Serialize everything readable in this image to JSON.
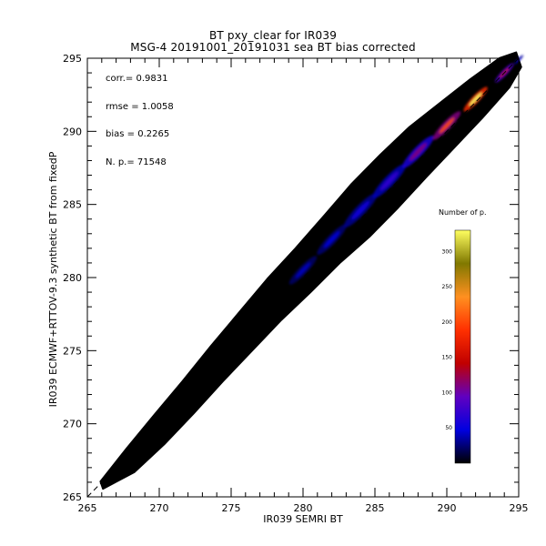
{
  "title_line1": "BT pxy_clear for IR039",
  "title_line2": "MSG-4 20191001_20191031 sea BT bias corrected",
  "stats": {
    "corr": "corr.= 0.9831",
    "rmse": "rmse = 1.0058",
    "bias": "bias = 0.2265",
    "np": "N. p.=   71548"
  },
  "colorbar": {
    "title": "Number of p.",
    "ticks": [
      "50",
      "100",
      "150",
      "200",
      "250",
      "300"
    ],
    "tick_values": [
      50,
      100,
      150,
      200,
      250,
      300
    ],
    "max": 330,
    "colors": [
      "#000000",
      "#0000e0",
      "#6000c0",
      "#c00000",
      "#ff3000",
      "#ff9020",
      "#807800",
      "#ffff60"
    ]
  },
  "chart_data": {
    "type": "heatmap",
    "title": "BT pxy_clear for IR039",
    "subtitle": "MSG-4 20191001_20191031 sea BT bias corrected",
    "xlabel": "IR039 SEMRI BT",
    "ylabel": "IR039 ECMWF+RTTOV-9.3 synthetic BT from fixedP",
    "xlim": [
      265,
      295
    ],
    "ylim": [
      265,
      295
    ],
    "xticks": [
      265,
      270,
      275,
      280,
      285,
      290,
      295
    ],
    "yticks": [
      265,
      270,
      275,
      280,
      285,
      290,
      295
    ],
    "x_tick_labels": [
      "265",
      "270",
      "275",
      "280",
      "285",
      "290",
      "295"
    ],
    "y_tick_labels": [
      "265",
      "270",
      "275",
      "280",
      "285",
      "290",
      "295"
    ],
    "reference_line": "y = x (dashed)",
    "colorbar_label": "Number of p.",
    "colorbar_range": [
      0,
      330
    ],
    "density_ridge": [
      {
        "x": 266.0,
        "y": 265.8,
        "halfwidth": 0.25,
        "count": 5
      },
      {
        "x": 268.0,
        "y": 267.5,
        "halfwidth": 0.8,
        "count": 10
      },
      {
        "x": 270.0,
        "y": 269.6,
        "halfwidth": 1.0,
        "count": 15
      },
      {
        "x": 272.0,
        "y": 271.8,
        "halfwidth": 1.1,
        "count": 20
      },
      {
        "x": 274.0,
        "y": 274.1,
        "halfwidth": 1.2,
        "count": 25
      },
      {
        "x": 276.0,
        "y": 276.3,
        "halfwidth": 1.3,
        "count": 30
      },
      {
        "x": 278.0,
        "y": 278.5,
        "halfwidth": 1.4,
        "count": 35
      },
      {
        "x": 280.0,
        "y": 280.5,
        "halfwidth": 1.5,
        "count": 40
      },
      {
        "x": 282.0,
        "y": 282.6,
        "halfwidth": 1.6,
        "count": 45
      },
      {
        "x": 284.0,
        "y": 284.6,
        "halfwidth": 1.8,
        "count": 55
      },
      {
        "x": 286.0,
        "y": 286.6,
        "halfwidth": 1.8,
        "count": 70
      },
      {
        "x": 288.0,
        "y": 288.6,
        "halfwidth": 1.7,
        "count": 110
      },
      {
        "x": 290.0,
        "y": 290.4,
        "halfwidth": 1.5,
        "count": 200
      },
      {
        "x": 292.0,
        "y": 292.2,
        "halfwidth": 1.3,
        "count": 330
      },
      {
        "x": 294.0,
        "y": 294.0,
        "halfwidth": 1.0,
        "count": 150
      },
      {
        "x": 295.0,
        "y": 294.9,
        "halfwidth": 0.5,
        "count": 60
      }
    ]
  }
}
